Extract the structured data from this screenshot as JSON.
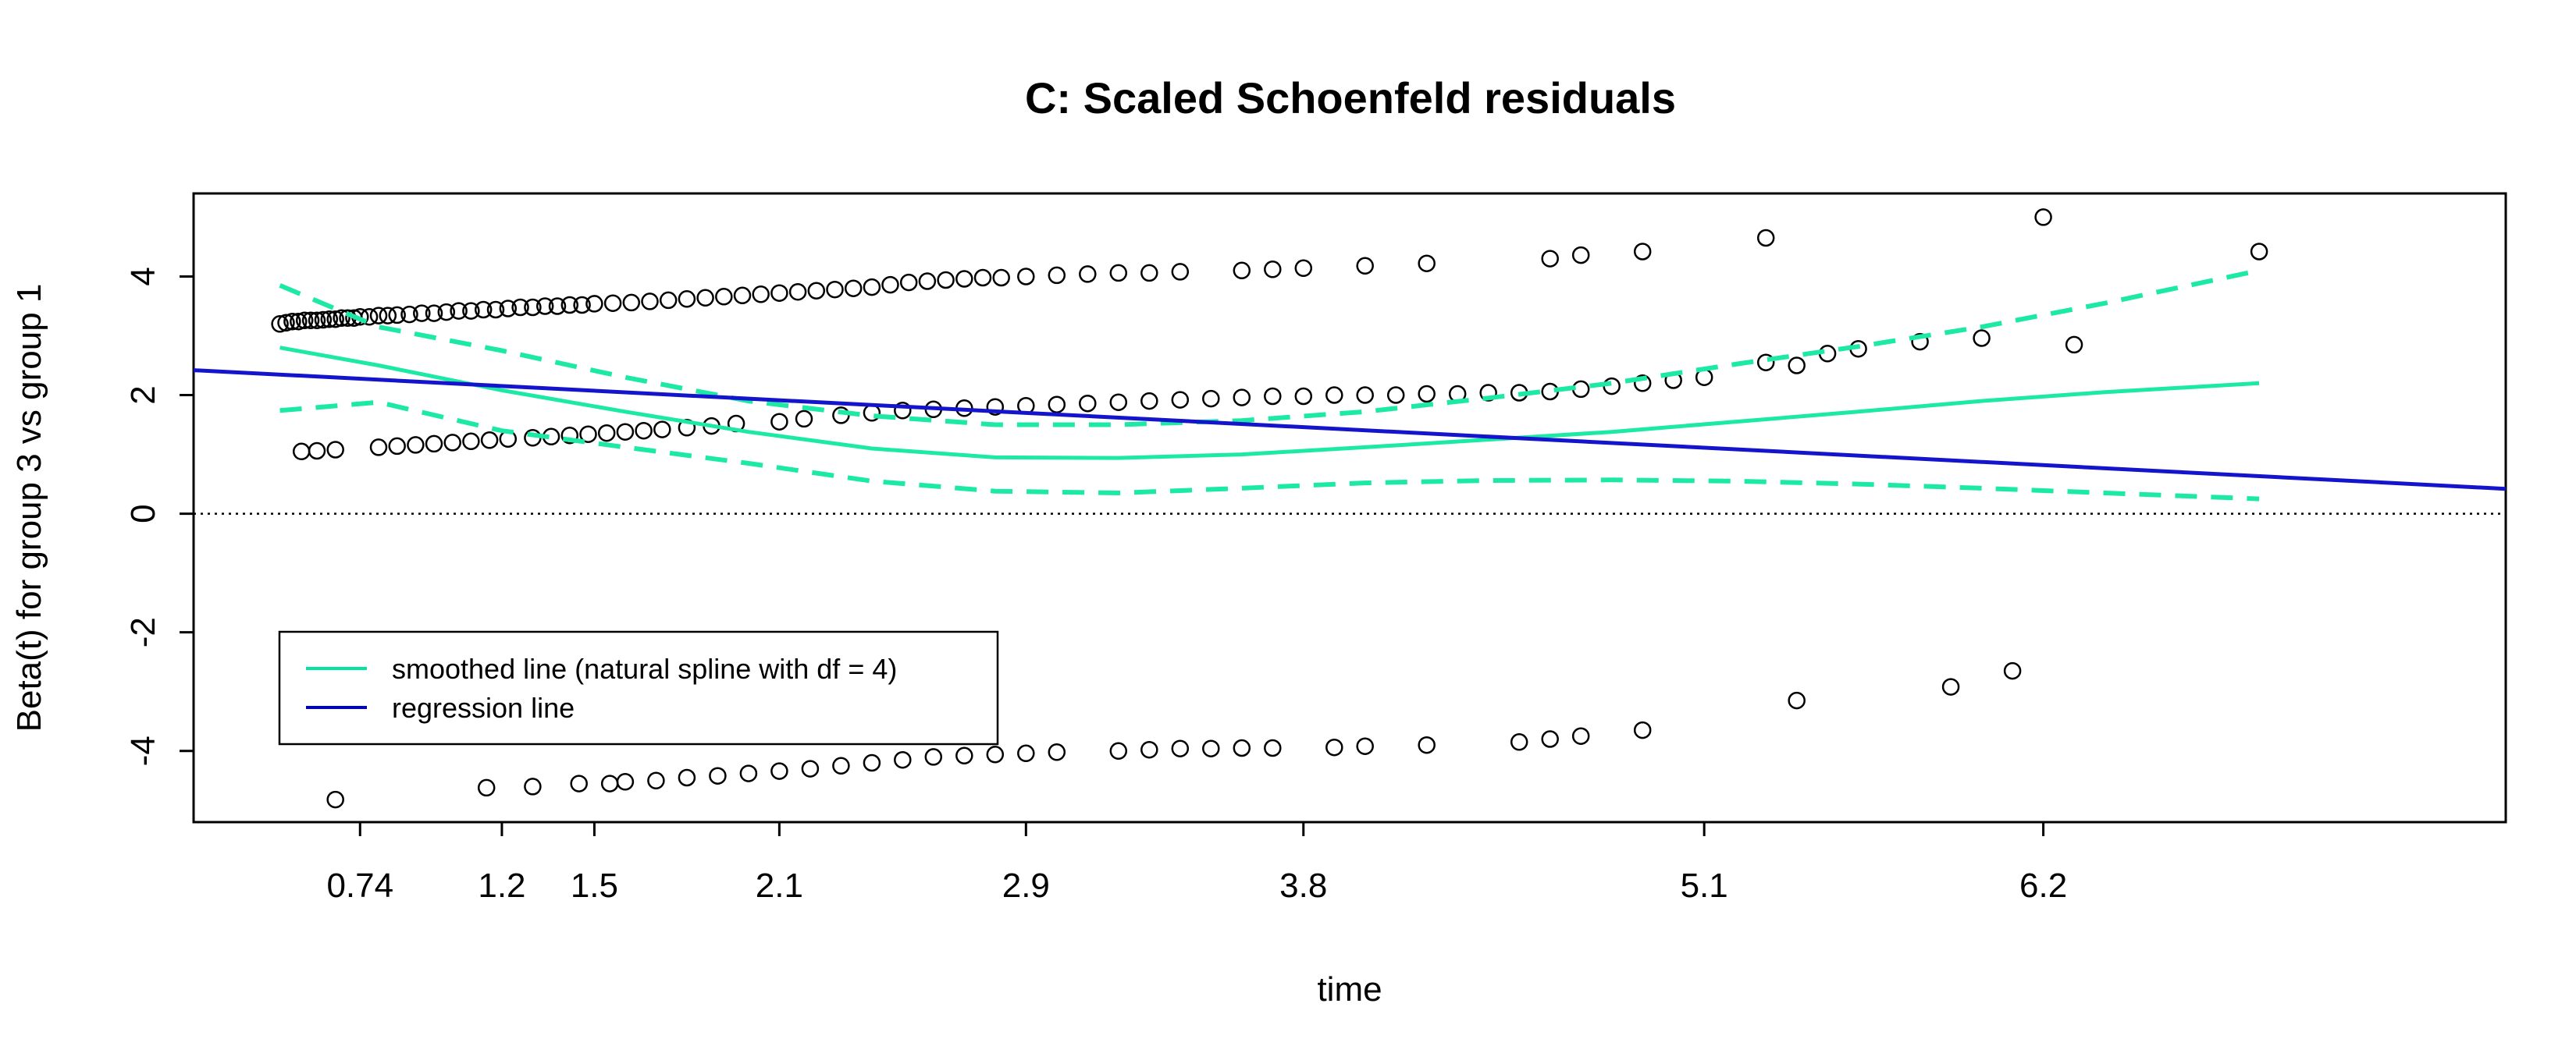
{
  "chart_data": {
    "type": "scatter",
    "title": "C: Scaled Schoenfeld residuals",
    "xlabel": "time",
    "ylabel": "Beta(t) for group 3 vs group 1",
    "x_tick_labels": [
      "0.74",
      "1.2",
      "1.5",
      "2.1",
      "2.9",
      "3.8",
      "5.1",
      "6.2"
    ],
    "x_tick_positions": [
      0.74,
      1.2,
      1.5,
      2.1,
      2.9,
      3.8,
      5.1,
      6.2
    ],
    "y_ticks": [
      -4,
      -2,
      0,
      2,
      4
    ],
    "y_tick_labels": [
      "-4",
      "-2",
      "0",
      "2",
      "4"
    ],
    "xlim": [
      0.2,
      7.7
    ],
    "ylim": [
      -5.2,
      5.4
    ],
    "reference_line_y": 0,
    "legend": {
      "position": "bottom-left",
      "entries": [
        {
          "label": "smoothed line (natural spline with df = 4)",
          "color": "#00e5a0",
          "style": "solid"
        },
        {
          "label": "regression line",
          "color": "#0000cc",
          "style": "solid"
        }
      ]
    },
    "colors": {
      "points": "#000000",
      "smooth": "#1de9a6",
      "regression": "#1414cc",
      "zero_line": "#000000"
    },
    "regression_line": {
      "x": [
        0.2,
        7.7
      ],
      "y": [
        2.42,
        0.42
      ]
    },
    "smoothed_line": {
      "x": [
        0.48,
        0.8,
        1.2,
        1.6,
        2.0,
        2.4,
        2.8,
        3.2,
        3.6,
        4.0,
        4.4,
        4.8,
        5.2,
        5.6,
        6.0,
        6.4,
        6.9
      ],
      "y": [
        2.8,
        2.5,
        2.08,
        1.72,
        1.38,
        1.1,
        0.95,
        0.94,
        1.0,
        1.12,
        1.25,
        1.38,
        1.55,
        1.72,
        1.9,
        2.05,
        2.2
      ]
    },
    "confidence_upper": {
      "x": [
        0.48,
        0.8,
        1.2,
        1.6,
        2.0,
        2.4,
        2.8,
        3.2,
        3.6,
        4.0,
        4.4,
        4.8,
        5.2,
        5.6,
        6.0,
        6.4,
        6.9
      ],
      "y": [
        3.85,
        3.15,
        2.75,
        2.3,
        1.9,
        1.65,
        1.5,
        1.5,
        1.57,
        1.72,
        1.95,
        2.2,
        2.52,
        2.82,
        3.15,
        3.55,
        4.1
      ]
    },
    "confidence_lower": {
      "x": [
        0.48,
        0.8,
        1.2,
        1.6,
        2.0,
        2.4,
        2.8,
        3.2,
        3.6,
        4.0,
        4.4,
        4.8,
        5.2,
        5.6,
        6.0,
        6.4,
        6.9
      ],
      "y": [
        1.74,
        1.88,
        1.4,
        1.12,
        0.85,
        0.55,
        0.38,
        0.35,
        0.43,
        0.52,
        0.56,
        0.57,
        0.55,
        0.5,
        0.43,
        0.35,
        0.25
      ]
    },
    "points": {
      "x": [
        0.48,
        0.5,
        0.52,
        0.54,
        0.56,
        0.58,
        0.6,
        0.62,
        0.64,
        0.66,
        0.68,
        0.7,
        0.72,
        0.74,
        0.77,
        0.8,
        0.83,
        0.86,
        0.9,
        0.94,
        0.98,
        1.02,
        1.06,
        1.1,
        1.14,
        1.18,
        1.22,
        1.26,
        1.3,
        1.34,
        1.38,
        1.42,
        1.46,
        1.5,
        1.56,
        1.62,
        1.68,
        1.74,
        1.8,
        1.86,
        1.92,
        1.98,
        2.04,
        2.1,
        2.16,
        2.22,
        2.28,
        2.34,
        2.4,
        2.46,
        2.52,
        2.58,
        2.64,
        2.7,
        2.76,
        2.82,
        2.9,
        3.0,
        3.1,
        3.2,
        3.3,
        3.4,
        3.6,
        3.7,
        3.8,
        4.0,
        4.2,
        4.6,
        4.7,
        4.9,
        5.3,
        6.2,
        6.9,
        0.55,
        0.6,
        0.66,
        0.8,
        0.86,
        0.92,
        0.98,
        1.04,
        1.1,
        1.16,
        1.22,
        1.3,
        1.36,
        1.42,
        1.48,
        1.54,
        1.6,
        1.66,
        1.72,
        1.8,
        1.88,
        1.96,
        2.1,
        2.18,
        2.3,
        2.4,
        2.5,
        2.6,
        2.7,
        2.8,
        2.9,
        3.0,
        3.1,
        3.2,
        3.3,
        3.4,
        3.5,
        3.6,
        3.7,
        3.8,
        3.9,
        4.0,
        4.1,
        4.2,
        4.3,
        4.4,
        4.5,
        4.6,
        4.7,
        4.8,
        4.9,
        5.0,
        5.1,
        5.3,
        5.4,
        5.5,
        5.6,
        5.8,
        6.0,
        6.3,
        0.66,
        1.15,
        1.3,
        1.45,
        1.55,
        1.6,
        1.7,
        1.8,
        1.9,
        2.0,
        2.1,
        2.2,
        2.3,
        2.4,
        2.5,
        2.6,
        2.7,
        2.8,
        2.9,
        3.0,
        3.2,
        3.3,
        3.4,
        3.5,
        3.6,
        3.7,
        3.9,
        4.0,
        4.2,
        4.5,
        4.6,
        4.7,
        4.9,
        5.4,
        5.9,
        6.1
      ],
      "y": [
        3.2,
        3.22,
        3.24,
        3.24,
        3.26,
        3.26,
        3.26,
        3.27,
        3.28,
        3.28,
        3.3,
        3.3,
        3.3,
        3.32,
        3.32,
        3.34,
        3.34,
        3.35,
        3.36,
        3.38,
        3.38,
        3.4,
        3.42,
        3.42,
        3.44,
        3.44,
        3.46,
        3.48,
        3.48,
        3.5,
        3.5,
        3.52,
        3.52,
        3.54,
        3.55,
        3.56,
        3.58,
        3.6,
        3.62,
        3.64,
        3.66,
        3.68,
        3.7,
        3.72,
        3.74,
        3.76,
        3.78,
        3.8,
        3.82,
        3.86,
        3.9,
        3.92,
        3.94,
        3.96,
        3.98,
        3.98,
        4.0,
        4.02,
        4.04,
        4.06,
        4.06,
        4.08,
        4.1,
        4.12,
        4.14,
        4.18,
        4.22,
        4.3,
        4.36,
        4.42,
        4.65,
        5.0,
        4.42,
        1.05,
        1.06,
        1.08,
        1.12,
        1.14,
        1.16,
        1.18,
        1.2,
        1.22,
        1.24,
        1.26,
        1.28,
        1.3,
        1.32,
        1.34,
        1.36,
        1.38,
        1.4,
        1.42,
        1.45,
        1.48,
        1.52,
        1.55,
        1.6,
        1.66,
        1.7,
        1.74,
        1.76,
        1.78,
        1.8,
        1.82,
        1.84,
        1.86,
        1.88,
        1.9,
        1.92,
        1.94,
        1.96,
        1.98,
        1.98,
        2.0,
        2.0,
        2.0,
        2.02,
        2.02,
        2.04,
        2.04,
        2.06,
        2.1,
        2.15,
        2.2,
        2.25,
        2.3,
        2.55,
        2.5,
        2.7,
        2.78,
        2.9,
        2.96,
        2.85,
        -4.82,
        -4.62,
        -4.6,
        -4.55,
        -4.55,
        -4.52,
        -4.5,
        -4.45,
        -4.42,
        -4.38,
        -4.34,
        -4.3,
        -4.25,
        -4.2,
        -4.15,
        -4.1,
        -4.08,
        -4.06,
        -4.04,
        -4.02,
        -4.0,
        -3.98,
        -3.96,
        -3.96,
        -3.95,
        -3.95,
        -3.94,
        -3.92,
        -3.9,
        -3.85,
        -3.8,
        -3.75,
        -3.65,
        -3.15,
        -2.92,
        -2.65
      ]
    }
  }
}
